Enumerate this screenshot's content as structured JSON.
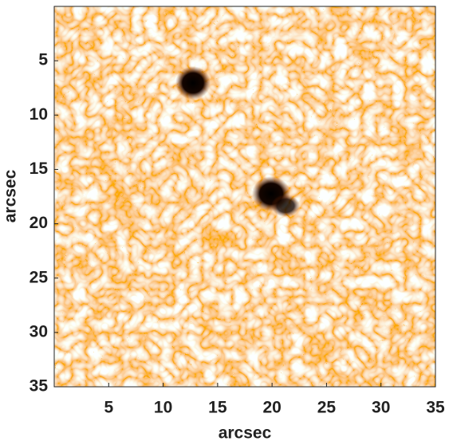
{
  "chart_data": {
    "type": "image",
    "x_label": "arcsec",
    "y_label": "arcsec",
    "xlim": [
      0,
      35
    ],
    "ylim": [
      0,
      35
    ],
    "y_inverted": true,
    "xticks": [
      5,
      10,
      15,
      20,
      25,
      30,
      35
    ],
    "yticks": [
      5,
      10,
      15,
      20,
      25,
      30,
      35
    ],
    "colormap": [
      "#e06a00",
      "#fff6e6"
    ]
  }
}
